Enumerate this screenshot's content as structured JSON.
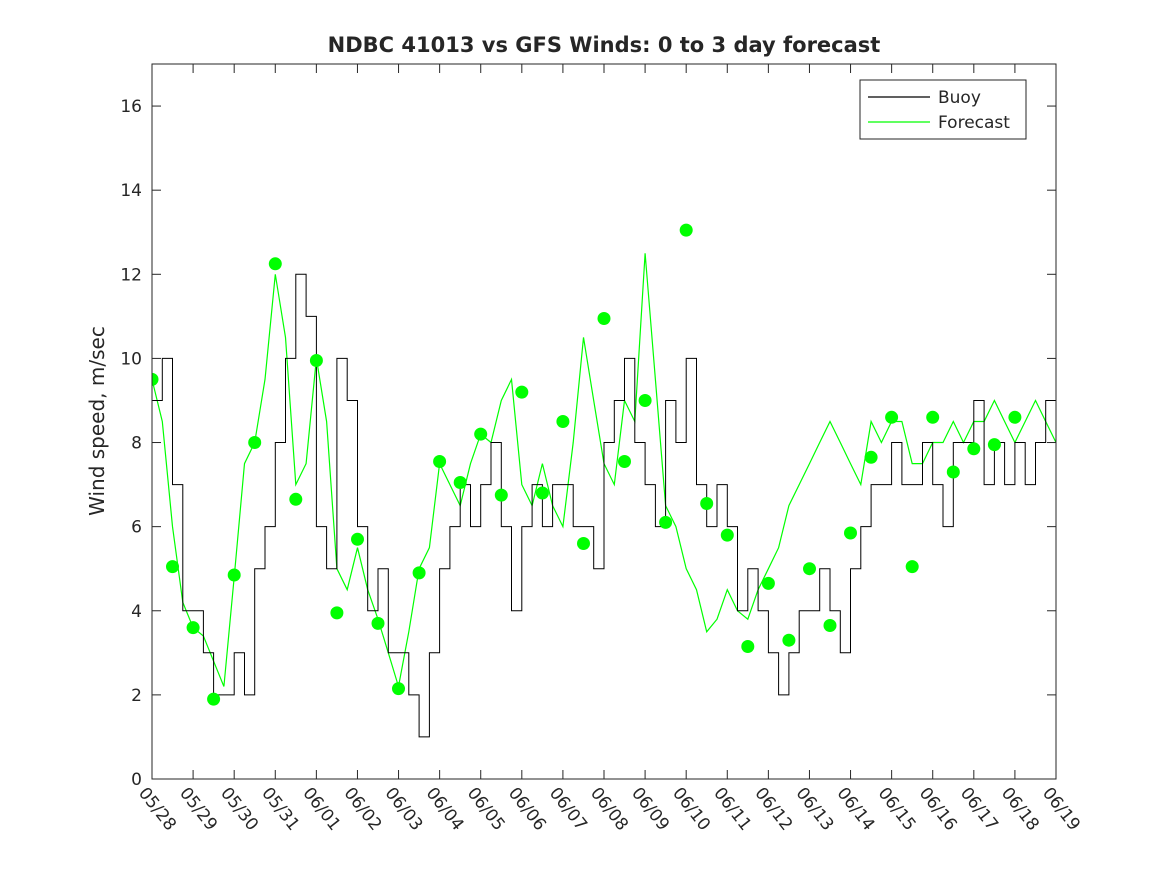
{
  "chart_data": {
    "type": "line",
    "title": "NDBC 41013 vs GFS Winds: 0 to 3 day forecast",
    "ylabel": "Wind speed, m/sec",
    "xlabel": "",
    "ylim": [
      0,
      17
    ],
    "yticks": [
      0,
      2,
      4,
      6,
      8,
      10,
      12,
      14,
      16
    ],
    "xlim": [
      "05/28",
      "06/19"
    ],
    "xticks": [
      "05/28",
      "05/29",
      "05/30",
      "05/31",
      "06/01",
      "06/02",
      "06/03",
      "06/04",
      "06/05",
      "06/06",
      "06/07",
      "06/08",
      "06/09",
      "06/10",
      "06/11",
      "06/12",
      "06/13",
      "06/14",
      "06/15",
      "06/16",
      "06/17",
      "06/18",
      "06/19"
    ],
    "legend": {
      "position": "top-right",
      "entries": [
        "Buoy",
        "Forecast"
      ]
    },
    "grid": false,
    "colors": {
      "buoy": "#000000",
      "forecast": "#00ff00"
    },
    "series": [
      {
        "name": "Buoy",
        "x_days": [
          0,
          0.25,
          0.5,
          0.75,
          1,
          1.25,
          1.5,
          1.75,
          2,
          2.25,
          2.5,
          2.75,
          3,
          3.25,
          3.5,
          3.75,
          4,
          4.25,
          4.5,
          4.75,
          5,
          5.25,
          5.5,
          5.75,
          6,
          6.25,
          6.5,
          6.75,
          7,
          7.25,
          7.5,
          7.75,
          8,
          8.25,
          8.5,
          8.75,
          9,
          9.25,
          9.5,
          9.75,
          10,
          10.25,
          10.5,
          10.75,
          11,
          11.25,
          11.5,
          11.75,
          12,
          12.25,
          12.5,
          12.75,
          13,
          13.25,
          13.5,
          13.75,
          14,
          14.25,
          14.5,
          14.75,
          15,
          15.25,
          15.5,
          15.75,
          16,
          16.25,
          16.5,
          16.75,
          17,
          17.25,
          17.5,
          17.75,
          18,
          18.25,
          18.5,
          18.75,
          19,
          19.25,
          19.5,
          19.75,
          20,
          20.25,
          20.5,
          20.75,
          21,
          21.25,
          21.5,
          21.75,
          22
        ],
        "values": [
          9,
          10,
          7,
          4,
          4,
          3,
          2,
          2,
          3,
          2,
          5,
          6,
          8,
          10,
          12,
          11,
          6,
          5,
          10,
          9,
          6,
          4,
          5,
          3,
          3,
          2,
          1,
          3,
          5,
          6,
          7,
          6,
          7,
          8,
          6,
          4,
          6,
          7,
          6,
          7,
          7,
          6,
          6,
          5,
          8,
          9,
          10,
          8,
          7,
          6,
          9,
          8,
          10,
          7,
          6,
          7,
          6,
          4,
          5,
          4,
          3,
          2,
          3,
          4,
          4,
          5,
          4,
          3,
          5,
          6,
          7,
          7,
          8,
          7,
          7,
          8,
          7,
          6,
          8,
          8,
          9,
          7,
          8,
          7,
          8,
          7,
          8,
          9,
          8
        ]
      },
      {
        "name": "Forecast",
        "x_days": [
          0,
          0.25,
          0.5,
          0.75,
          1,
          1.25,
          1.5,
          1.75,
          2,
          2.25,
          2.5,
          2.75,
          3,
          3.25,
          3.5,
          3.75,
          4,
          4.25,
          4.5,
          4.75,
          5,
          5.25,
          5.5,
          5.75,
          6,
          6.25,
          6.5,
          6.75,
          7,
          7.25,
          7.5,
          7.75,
          8,
          8.25,
          8.5,
          8.75,
          9,
          9.25,
          9.5,
          9.75,
          10,
          10.25,
          10.5,
          10.75,
          11,
          11.25,
          11.5,
          11.75,
          12,
          12.25,
          12.5,
          12.75,
          13,
          13.25,
          13.5,
          13.75,
          14,
          14.25,
          14.5,
          14.75,
          15,
          15.25,
          15.5,
          15.75,
          16,
          16.25,
          16.5,
          16.75,
          17,
          17.25,
          17.5,
          17.75,
          18,
          18.25,
          18.5,
          18.75,
          19,
          19.25,
          19.5,
          19.75,
          20,
          20.25,
          20.5,
          20.75,
          21,
          21.25,
          21.5,
          21.75,
          22
        ],
        "values": [
          9.5,
          8.5,
          6,
          4.2,
          3.6,
          3.4,
          2.8,
          2.2,
          4.8,
          7.5,
          8,
          9.5,
          12,
          10.5,
          7,
          7.5,
          10,
          8.5,
          5,
          4.5,
          5.5,
          4.5,
          3.8,
          3,
          2.2,
          3.5,
          5,
          5.5,
          7.5,
          7,
          6.5,
          7.5,
          8.2,
          8,
          9,
          9.5,
          7,
          6.5,
          7.5,
          6.5,
          6,
          8,
          10.5,
          9,
          7.5,
          7,
          9,
          8.5,
          12.5,
          9.5,
          6.5,
          6,
          5,
          4.5,
          3.5,
          3.8,
          4.5,
          4,
          3.8,
          4.5,
          5,
          5.5,
          6.5,
          7,
          7.5,
          8,
          8.5,
          8,
          7.5,
          7,
          8.5,
          8,
          8.5,
          8.5,
          7.5,
          7.5,
          8,
          8,
          8.5,
          8,
          8.5,
          8.5,
          9,
          8.5,
          8,
          8.5,
          9,
          8.5,
          8
        ]
      },
      {
        "name": "",
        "marker": "circle",
        "x_days": [
          0,
          0.5,
          1,
          1.5,
          2,
          2.5,
          3,
          3.5,
          4,
          4.5,
          5,
          5.5,
          6,
          6.5,
          7,
          7.5,
          8,
          8.5,
          9,
          9.5,
          10,
          10.5,
          11,
          11.5,
          12,
          12.5,
          13,
          13.5,
          14,
          14.5,
          15,
          15.5,
          16,
          16.5,
          17,
          17.5,
          18,
          18.5,
          19,
          19.5,
          20,
          20.5,
          21
        ],
        "values": [
          9.5,
          5.05,
          3.6,
          1.9,
          4.85,
          8,
          12.25,
          6.65,
          9.95,
          3.95,
          5.7,
          3.7,
          2.15,
          4.9,
          7.55,
          7.05,
          8.2,
          6.75,
          9.2,
          6.8,
          8.5,
          5.6,
          10.95,
          7.55,
          9.0,
          6.1,
          13.05,
          6.55,
          5.8,
          3.15,
          4.65,
          3.3,
          5.0,
          3.65,
          5.85,
          7.65,
          8.6,
          5.05,
          8.6,
          7.3,
          7.85,
          7.95,
          8.6
        ]
      }
    ]
  }
}
